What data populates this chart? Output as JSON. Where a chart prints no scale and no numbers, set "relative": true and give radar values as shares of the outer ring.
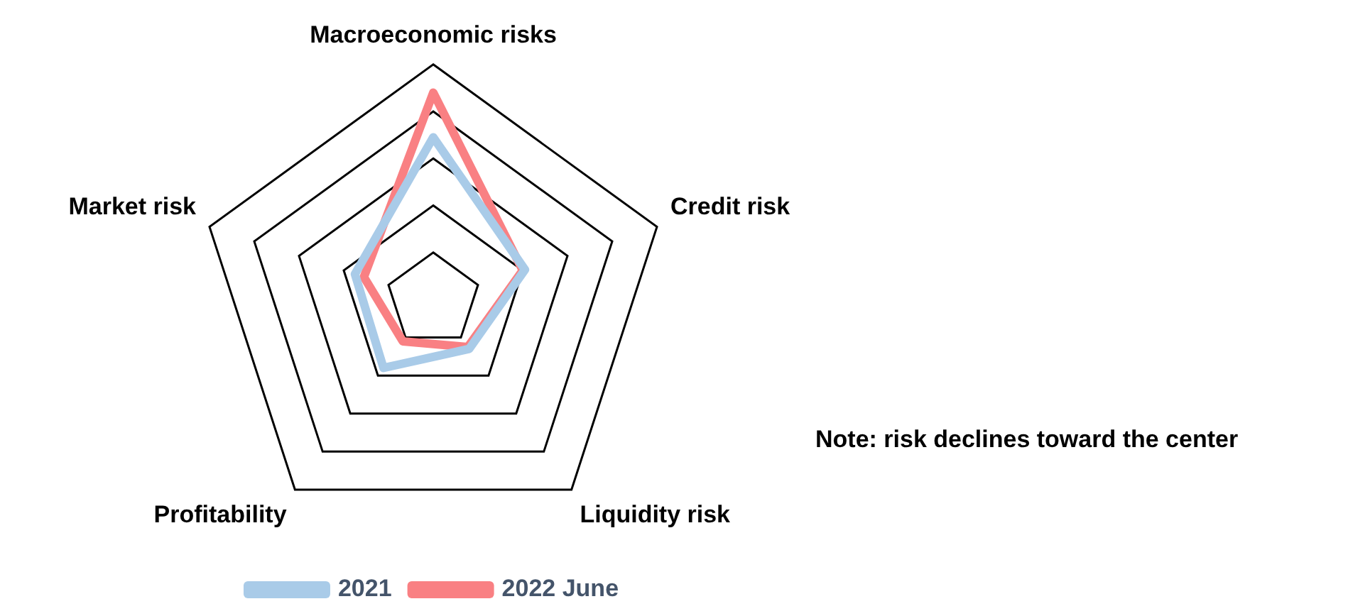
{
  "chart_data": {
    "type": "radar",
    "relative": true,
    "categories": [
      "Macroeconomic risks",
      "Credit risk",
      "Liquidity risk",
      "Profitability",
      "Market risk"
    ],
    "series": [
      {
        "name": "2021",
        "color": "#a9cbe8",
        "values": [
          0.69,
          0.41,
          0.26,
          0.36,
          0.35
        ]
      },
      {
        "name": "2022 June",
        "color": "#f98083",
        "values": [
          0.88,
          0.4,
          0.25,
          0.22,
          0.31
        ]
      }
    ],
    "grid": true,
    "legend": "bottom",
    "marker": "none",
    "line_style": "solid",
    "annotations": [
      "Note: risk declines toward the center"
    ]
  }
}
